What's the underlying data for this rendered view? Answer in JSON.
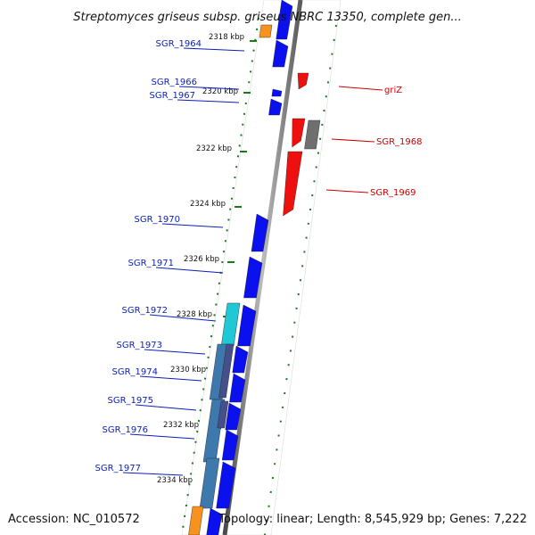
{
  "title": "Streptomyces griseus subsp. griseus NBRC 13350, complete gen...",
  "footer": {
    "accession": "Accession: NC_010572",
    "summary": "Topology: linear; Length: 8,545,929 bp; Genes: 7,222"
  },
  "colors": {
    "forward": "#0a10ee",
    "reverse": "#ee0f0f",
    "grey": "#6f6f6f",
    "orange": "#f7921e",
    "cyan": "#1fc8d4",
    "steel": "#3e79ad",
    "tick": "#1a7a1a",
    "axis": "#8a8a8a",
    "label_blue": "#0a1fb8",
    "label_red": "#cc0000"
  },
  "ticks": [
    "2318 kbp",
    "2320 kbp",
    "2322 kbp",
    "2324 kbp",
    "2326 kbp",
    "2328 kbp",
    "2330 kbp",
    "2332 kbp",
    "2334 kbp"
  ],
  "gene_labels_left": [
    "SGR_1964",
    "SGR_1966",
    "SGR_1967",
    "SGR_1970",
    "SGR_1971",
    "SGR_1972",
    "SGR_1973",
    "SGR_1974",
    "SGR_1975",
    "SGR_1976",
    "SGR_1977"
  ],
  "gene_labels_right": [
    "griZ",
    "SGR_1968",
    "SGR_1969"
  ]
}
